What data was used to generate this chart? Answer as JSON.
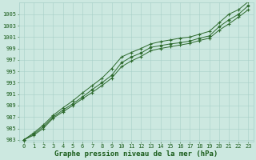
{
  "title": "Graphe pression niveau de la mer (hPa)",
  "x": [
    0,
    1,
    2,
    3,
    4,
    5,
    6,
    7,
    8,
    9,
    10,
    11,
    12,
    13,
    14,
    15,
    16,
    17,
    18,
    19,
    20,
    21,
    22,
    23
  ],
  "y_main": [
    983.0,
    984.0,
    985.3,
    987.0,
    988.2,
    989.3,
    990.5,
    991.8,
    993.0,
    994.3,
    996.5,
    997.5,
    998.2,
    999.2,
    999.5,
    999.8,
    1000.0,
    1000.3,
    1000.8,
    1001.2,
    1002.8,
    1004.0,
    1005.0,
    1006.5
  ],
  "y_upper": [
    983.0,
    984.2,
    985.6,
    987.3,
    988.6,
    989.8,
    991.2,
    992.5,
    993.8,
    995.5,
    997.5,
    998.3,
    999.0,
    999.8,
    1000.2,
    1000.5,
    1000.8,
    1001.0,
    1001.5,
    1002.0,
    1003.5,
    1005.0,
    1005.8,
    1007.2
  ],
  "y_lower": [
    983.0,
    983.8,
    985.0,
    986.8,
    987.9,
    989.0,
    990.2,
    991.3,
    992.5,
    993.8,
    995.8,
    996.8,
    997.6,
    998.6,
    999.0,
    999.3,
    999.6,
    999.9,
    1000.4,
    1000.8,
    1002.2,
    1003.3,
    1004.5,
    1005.8
  ],
  "line_color": "#2d6a2d",
  "marker_color": "#2d6a2d",
  "bg_color": "#cce8e0",
  "grid_color": "#a8cfc8",
  "text_color": "#1a5c1a",
  "ylim_min": 983,
  "ylim_max": 1007,
  "xlim_min": -0.5,
  "xlim_max": 23.5,
  "yticks": [
    983,
    985,
    987,
    989,
    991,
    993,
    995,
    997,
    999,
    1001,
    1003,
    1005
  ],
  "xticks": [
    0,
    1,
    2,
    3,
    4,
    5,
    6,
    7,
    8,
    9,
    10,
    11,
    12,
    13,
    14,
    15,
    16,
    17,
    18,
    19,
    20,
    21,
    22,
    23
  ],
  "tick_fontsize": 5.0,
  "title_fontsize": 6.5,
  "figwidth": 3.2,
  "figheight": 2.0,
  "dpi": 100
}
